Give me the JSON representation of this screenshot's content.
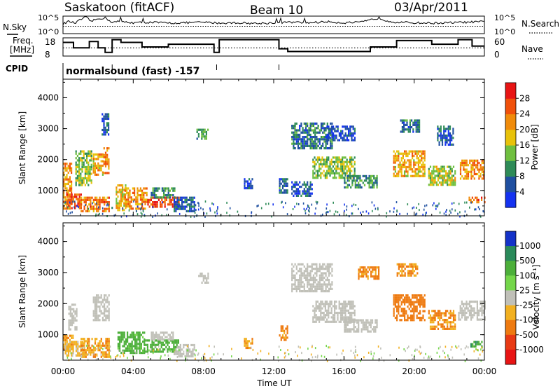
{
  "header": {
    "station": "Saskatoon (fitACF)",
    "beam": "Beam 10",
    "date": "03/Apr/2011"
  },
  "top_panels": {
    "nsky_label": "N.Sky",
    "nsky_ticks": [
      "10^5",
      "10^0"
    ],
    "nsearch_label": "N.Search",
    "nsearch_ticks": [
      "10^5",
      "10^0"
    ],
    "freq_label_1": "Freq.",
    "freq_label_2": "[MHz]",
    "freq_ticks": [
      "18",
      "8"
    ],
    "nave_label": "Nave",
    "nave_ticks": [
      "60",
      "0"
    ],
    "cpid_label": "CPID",
    "cpid_text": "normalsound (fast) -157"
  },
  "chart_data": [
    {
      "type": "heatmap",
      "name": "power",
      "ylabel": "Slant Range [km]",
      "y_ticks": [
        "1000",
        "2000",
        "3000",
        "4000"
      ],
      "ylim": [
        180,
        4600
      ],
      "xlim": [
        0,
        24
      ],
      "colorbar_label": "Power [dB]",
      "colorbar_ticks": [
        "4",
        "8",
        "12",
        "16",
        "20",
        "24",
        "28"
      ],
      "colorbar_colors": [
        "#1432f0",
        "#1f4fa0",
        "#2e8b57",
        "#6fbf3f",
        "#e8c20a",
        "#f08b0a",
        "#f0500a",
        "#e81414"
      ],
      "regions": [
        {
          "t0": 0.0,
          "t1": 0.5,
          "r0": 400,
          "r1": 1900,
          "v": 22
        },
        {
          "t0": 0.2,
          "t1": 1.0,
          "r0": 450,
          "r1": 900,
          "v": 26
        },
        {
          "t0": 0.7,
          "t1": 1.6,
          "r0": 1200,
          "r1": 2300,
          "v": 14
        },
        {
          "t0": 1.0,
          "t1": 2.6,
          "r0": 350,
          "r1": 800,
          "v": 24
        },
        {
          "t0": 1.7,
          "t1": 2.3,
          "r0": 1500,
          "r1": 2200,
          "v": 20
        },
        {
          "t0": 2.3,
          "t1": 2.6,
          "r0": 1600,
          "r1": 2400,
          "v": 22
        },
        {
          "t0": 2.2,
          "t1": 2.6,
          "r0": 2800,
          "r1": 3500,
          "v": 6
        },
        {
          "t0": 3.0,
          "t1": 3.6,
          "r0": 350,
          "r1": 1200,
          "v": 18
        },
        {
          "t0": 3.5,
          "t1": 4.8,
          "r0": 400,
          "r1": 1100,
          "v": 22
        },
        {
          "t0": 4.8,
          "t1": 6.6,
          "r0": 450,
          "r1": 800,
          "v": 27
        },
        {
          "t0": 5.0,
          "t1": 6.4,
          "r0": 800,
          "r1": 1100,
          "v": 10
        },
        {
          "t0": 6.3,
          "t1": 7.5,
          "r0": 300,
          "r1": 800,
          "v": 6
        },
        {
          "t0": 7.6,
          "t1": 8.3,
          "r0": 2650,
          "r1": 3000,
          "v": 12
        },
        {
          "t0": 10.3,
          "t1": 10.8,
          "r0": 1100,
          "r1": 1400,
          "v": 4
        },
        {
          "t0": 12.3,
          "t1": 12.8,
          "r0": 900,
          "r1": 1400,
          "v": 8
        },
        {
          "t0": 13.0,
          "t1": 15.3,
          "r0": 2400,
          "r1": 3200,
          "v": 8
        },
        {
          "t0": 14.2,
          "t1": 16.6,
          "r0": 1400,
          "r1": 2100,
          "v": 14
        },
        {
          "t0": 16.0,
          "t1": 17.9,
          "r0": 1100,
          "r1": 1500,
          "v": 10
        },
        {
          "t0": 13.0,
          "t1": 14.2,
          "r0": 800,
          "r1": 1300,
          "v": 6
        },
        {
          "t0": 15.0,
          "t1": 16.6,
          "r0": 2600,
          "r1": 3100,
          "v": 4
        },
        {
          "t0": 18.8,
          "t1": 20.6,
          "r0": 1500,
          "r1": 2300,
          "v": 20
        },
        {
          "t0": 20.8,
          "t1": 22.3,
          "r0": 1200,
          "r1": 1800,
          "v": 16
        },
        {
          "t0": 19.2,
          "t1": 20.3,
          "r0": 2900,
          "r1": 3300,
          "v": 8
        },
        {
          "t0": 21.3,
          "t1": 22.2,
          "r0": 2500,
          "r1": 3100,
          "v": 6
        },
        {
          "t0": 22.6,
          "t1": 24.0,
          "r0": 1400,
          "r1": 2000,
          "v": 22
        },
        {
          "t0": 23.1,
          "t1": 24.0,
          "r0": 600,
          "r1": 800,
          "v": 24
        }
      ]
    },
    {
      "type": "heatmap",
      "name": "velocity",
      "ylabel": "Slant Range [km]",
      "y_ticks": [
        "1000",
        "2000",
        "3000",
        "4000"
      ],
      "ylim": [
        180,
        4600
      ],
      "xlim": [
        0,
        24
      ],
      "colorbar_label": "Velocity [m s⁻¹]",
      "colorbar_ticks": [
        "1000",
        "500",
        "100",
        "25",
        "-25",
        "-100",
        "-500",
        "-1000"
      ],
      "colorbar_colors": [
        "#1432c8",
        "#2a8a5a",
        "#4caf3a",
        "#74d64a",
        "#c0c0b8",
        "#f2b020",
        "#ee7a10",
        "#e83a14",
        "#e81414"
      ],
      "regions": [
        {
          "t0": 0.0,
          "t1": 0.6,
          "r0": 500,
          "r1": 1000,
          "v": -100
        },
        {
          "t0": 0.1,
          "t1": 1.1,
          "r0": 350,
          "r1": 800,
          "v": -50
        },
        {
          "t0": 0.3,
          "t1": 0.8,
          "r0": 1200,
          "r1": 2000,
          "v": 0
        },
        {
          "t0": 1.0,
          "t1": 2.6,
          "r0": 300,
          "r1": 900,
          "v": -80
        },
        {
          "t0": 1.7,
          "t1": 2.6,
          "r0": 1500,
          "r1": 2300,
          "v": 0
        },
        {
          "t0": 3.1,
          "t1": 4.6,
          "r0": 400,
          "r1": 1100,
          "v": 120
        },
        {
          "t0": 4.6,
          "t1": 6.6,
          "r0": 450,
          "r1": 850,
          "v": 150
        },
        {
          "t0": 5.0,
          "t1": 6.3,
          "r0": 850,
          "r1": 1100,
          "v": 0
        },
        {
          "t0": 6.3,
          "t1": 7.5,
          "r0": 300,
          "r1": 700,
          "v": 0
        },
        {
          "t0": 7.7,
          "t1": 8.3,
          "r0": 2650,
          "r1": 3000,
          "v": 0
        },
        {
          "t0": 10.3,
          "t1": 10.8,
          "r0": 600,
          "r1": 900,
          "v": -100
        },
        {
          "t0": 12.3,
          "t1": 12.8,
          "r0": 800,
          "r1": 1300,
          "v": -150
        },
        {
          "t0": 13.0,
          "t1": 15.3,
          "r0": 2400,
          "r1": 3300,
          "v": 0
        },
        {
          "t0": 14.2,
          "t1": 16.6,
          "r0": 1400,
          "r1": 2100,
          "v": 0
        },
        {
          "t0": 16.0,
          "t1": 17.9,
          "r0": 1100,
          "r1": 1500,
          "v": 0
        },
        {
          "t0": 16.8,
          "t1": 18.0,
          "r0": 2800,
          "r1": 3200,
          "v": -150
        },
        {
          "t0": 18.8,
          "t1": 20.6,
          "r0": 1500,
          "r1": 2300,
          "v": -300
        },
        {
          "t0": 19.0,
          "t1": 20.2,
          "r0": 2900,
          "r1": 3300,
          "v": -100
        },
        {
          "t0": 20.8,
          "t1": 22.3,
          "r0": 1200,
          "r1": 1800,
          "v": -120
        },
        {
          "t0": 22.5,
          "t1": 24.0,
          "r0": 1500,
          "r1": 2100,
          "v": 0
        },
        {
          "t0": 23.2,
          "t1": 23.9,
          "r0": 600,
          "r1": 800,
          "v": 200
        }
      ]
    }
  ],
  "x_axis": {
    "label": "Time UT",
    "ticks": [
      "00:00",
      "04:00",
      "08:00",
      "12:00",
      "16:00",
      "20:00",
      "00:00"
    ]
  },
  "nsky_series": [
    [
      0,
      0.55
    ],
    [
      0.3,
      0.7
    ],
    [
      0.7,
      0.6
    ],
    [
      1.0,
      0.8
    ],
    [
      1.3,
      0.95
    ],
    [
      1.6,
      0.7
    ],
    [
      2.0,
      0.85
    ],
    [
      2.4,
      0.9
    ],
    [
      2.8,
      0.65
    ],
    [
      3.2,
      0.7
    ],
    [
      4.0,
      0.62
    ],
    [
      5.0,
      0.65
    ],
    [
      6.0,
      0.6
    ],
    [
      7.0,
      0.62
    ],
    [
      8.0,
      0.65
    ],
    [
      9.0,
      0.6
    ],
    [
      10.0,
      0.62
    ],
    [
      11.0,
      0.58
    ],
    [
      12.0,
      0.62
    ],
    [
      13.0,
      0.65
    ],
    [
      14.0,
      0.62
    ],
    [
      15.0,
      0.68
    ],
    [
      16.0,
      0.62
    ],
    [
      17.0,
      0.65
    ],
    [
      18.0,
      0.9
    ],
    [
      18.4,
      0.75
    ],
    [
      19.0,
      0.65
    ],
    [
      20.0,
      0.62
    ],
    [
      21.0,
      0.6
    ],
    [
      22.0,
      0.62
    ],
    [
      23.0,
      0.65
    ],
    [
      24.0,
      0.68
    ]
  ],
  "freq_series": [
    [
      0,
      0.75
    ],
    [
      0.6,
      0.75
    ],
    [
      0.6,
      0.45
    ],
    [
      1.5,
      0.45
    ],
    [
      1.5,
      0.8
    ],
    [
      2.0,
      0.8
    ],
    [
      2.0,
      0.45
    ],
    [
      2.4,
      0.45
    ],
    [
      2.4,
      0.2
    ],
    [
      2.8,
      0.2
    ],
    [
      2.8,
      0.9
    ],
    [
      3.3,
      0.9
    ],
    [
      3.3,
      0.75
    ],
    [
      4.5,
      0.75
    ],
    [
      4.5,
      0.5
    ],
    [
      6.0,
      0.5
    ],
    [
      6.0,
      0.65
    ],
    [
      8.6,
      0.65
    ],
    [
      8.6,
      0.2
    ],
    [
      8.9,
      0.2
    ],
    [
      8.9,
      0.9
    ],
    [
      12.3,
      0.9
    ],
    [
      12.3,
      0.4
    ],
    [
      12.8,
      0.4
    ],
    [
      12.8,
      0.25
    ],
    [
      17.5,
      0.25
    ],
    [
      17.5,
      0.5
    ],
    [
      19.0,
      0.5
    ],
    [
      19.0,
      0.85
    ],
    [
      21.0,
      0.85
    ],
    [
      21.0,
      0.65
    ],
    [
      22.5,
      0.65
    ],
    [
      22.5,
      0.9
    ],
    [
      23.3,
      0.9
    ],
    [
      23.3,
      0.55
    ],
    [
      24.0,
      0.55
    ]
  ],
  "nave_level": 0.45,
  "meta_times": [
    2.8,
    8.75,
    12.3
  ]
}
